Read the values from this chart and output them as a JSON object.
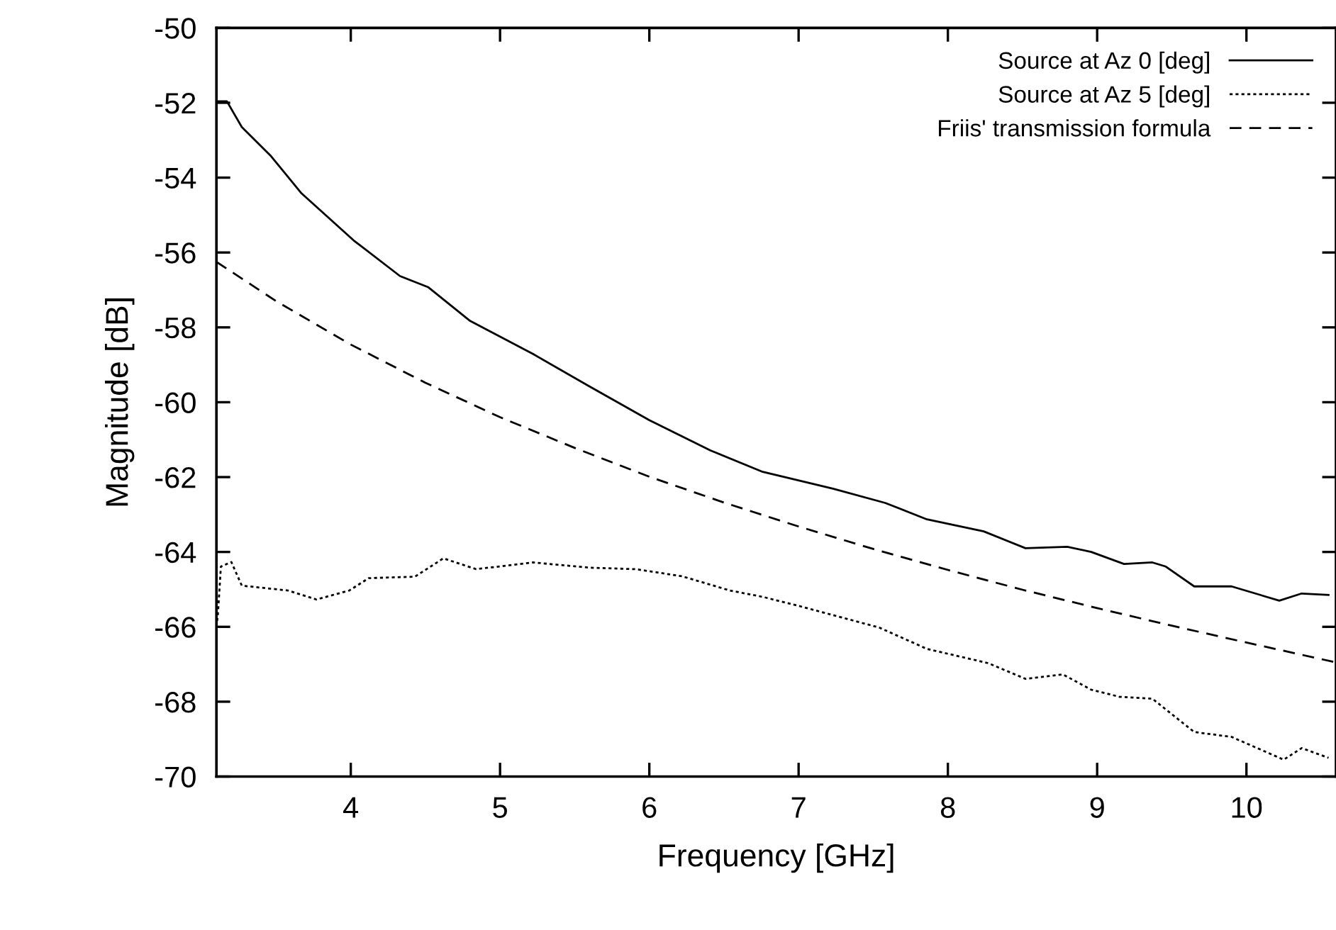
{
  "chart_data": {
    "type": "line",
    "xlabel": "Frequency [GHz]",
    "ylabel": "Magnitude [dB]",
    "xlim": [
      3.1,
      10.6
    ],
    "ylim": [
      -70,
      -50
    ],
    "xticks": [
      4,
      5,
      6,
      7,
      8,
      9,
      10
    ],
    "yticks": [
      -70,
      -68,
      -66,
      -64,
      -62,
      -60,
      -58,
      -56,
      -54,
      -52,
      -50
    ],
    "grid": false,
    "legend": "top right",
    "marker": "none",
    "series": [
      {
        "name": "Source at Az 0 [deg]",
        "color": "#000000",
        "line_style": "solid",
        "x": [
          3.11,
          3.17,
          3.27,
          3.46,
          3.67,
          4.02,
          4.33,
          4.52,
          4.8,
          5.22,
          5.6,
          6.0,
          6.41,
          6.76,
          7.23,
          7.58,
          7.86,
          8.24,
          8.52,
          8.8,
          8.96,
          9.18,
          9.37,
          9.46,
          9.65,
          9.9,
          10.22,
          10.37,
          10.55
        ],
        "values": [
          -51.96,
          -51.96,
          -52.65,
          -53.4,
          -54.42,
          -55.68,
          -56.63,
          -56.93,
          -57.83,
          -58.71,
          -59.58,
          -60.48,
          -61.29,
          -61.86,
          -62.31,
          -62.69,
          -63.13,
          -63.45,
          -63.9,
          -63.86,
          -64.0,
          -64.32,
          -64.28,
          -64.39,
          -64.92,
          -64.92,
          -65.3,
          -65.11,
          -65.15
        ]
      },
      {
        "name": "Source at Az 5 [deg]",
        "color": "#000000",
        "line_style": "dotted",
        "x": [
          3.1,
          3.11,
          3.13,
          3.2,
          3.27,
          3.58,
          3.77,
          3.99,
          4.12,
          4.43,
          4.62,
          4.84,
          5.22,
          5.6,
          5.91,
          6.22,
          6.54,
          6.76,
          7.01,
          7.54,
          7.86,
          8.27,
          8.52,
          8.77,
          8.96,
          9.15,
          9.37,
          9.65,
          9.9,
          10.25,
          10.37,
          10.55
        ],
        "values": [
          -66.0,
          -65.65,
          -64.39,
          -64.27,
          -64.9,
          -65.03,
          -65.27,
          -65.03,
          -64.7,
          -64.66,
          -64.17,
          -64.46,
          -64.28,
          -64.42,
          -64.46,
          -64.65,
          -65.03,
          -65.2,
          -65.45,
          -66.02,
          -66.59,
          -66.97,
          -67.39,
          -67.27,
          -67.68,
          -67.87,
          -67.92,
          -68.81,
          -68.94,
          -69.55,
          -69.24,
          -69.5
        ]
      },
      {
        "name": "Friis' transmission formula",
        "color": "#000000",
        "line_style": "dashed",
        "x": [
          3.1,
          3.5,
          4.0,
          4.5,
          5.0,
          5.5,
          6.0,
          6.5,
          7.0,
          7.5,
          8.0,
          8.5,
          9.0,
          9.5,
          10.0,
          10.6
        ],
        "values": [
          -56.25,
          -57.3,
          -58.46,
          -59.48,
          -60.4,
          -61.22,
          -61.99,
          -62.68,
          -63.32,
          -63.92,
          -64.48,
          -65.01,
          -65.5,
          -65.97,
          -66.42,
          -66.95
        ]
      }
    ]
  }
}
